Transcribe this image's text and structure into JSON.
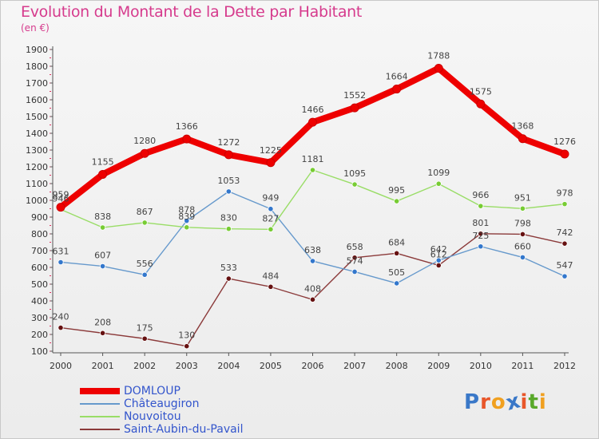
{
  "title": "Evolution du Montant de la Dette par Habitant",
  "subtitle": "(en €)",
  "logo": {
    "text": "Proxiti",
    "letter_colors": [
      "#3a78c8",
      "#e8562a",
      "#f0a020",
      "#3a78c8",
      "#e8562a",
      "#58a82a",
      "#f0a020"
    ]
  },
  "chart_data": {
    "type": "line",
    "x": [
      "2000",
      "2001",
      "2002",
      "2003",
      "2004",
      "2005",
      "2006",
      "2007",
      "2008",
      "2009",
      "2010",
      "2011",
      "2012"
    ],
    "ylim": [
      100,
      1900
    ],
    "yticks": [
      "100",
      "200",
      "300",
      "400",
      "500",
      "600",
      "700",
      "800",
      "900",
      "1000",
      "1100",
      "1200",
      "1300",
      "1400",
      "1500",
      "1600",
      "1700",
      "1800",
      "1900"
    ],
    "grid": false,
    "legend_position": "bottom-left",
    "series": [
      {
        "name": "DOMLOUP",
        "color": "#ee0000",
        "marker_color": "#ee0000",
        "label_color": "#3355cc",
        "values": [
          959,
          1155,
          1280,
          1366,
          1272,
          1225,
          1466,
          1552,
          1664,
          1788,
          1575,
          1368,
          1276
        ],
        "labels": [
          "959",
          "1155",
          "1280",
          "1366",
          "1272",
          "1225",
          "1466",
          "1552",
          "1664",
          "1788",
          "1575",
          "1368",
          "1276"
        ]
      },
      {
        "name": "Châteaugiron",
        "color": "#6699cc",
        "marker_color": "#3377cc",
        "label_color": "#3355cc",
        "values": [
          631,
          607,
          556,
          878,
          1053,
          949,
          638,
          574,
          505,
          642,
          725,
          660,
          547
        ],
        "labels": [
          "631",
          "607",
          "556",
          "878",
          "1053",
          "949",
          "638",
          "574",
          "505",
          "642",
          "725",
          "660",
          "547"
        ]
      },
      {
        "name": "Nouvoitou",
        "color": "#99dd66",
        "marker_color": "#77cc33",
        "label_color": "#3355cc",
        "values": [
          946,
          838,
          867,
          839,
          830,
          827,
          1181,
          1095,
          995,
          1099,
          966,
          951,
          978
        ],
        "labels": [
          "946",
          "838",
          "867",
          "839",
          "830",
          "827",
          "1181",
          "1095",
          "995",
          "1099",
          "966",
          "951",
          "978"
        ]
      },
      {
        "name": "Saint-Aubin-du-Pavail",
        "color": "#8b3a3a",
        "marker_color": "#661111",
        "label_color": "#3355cc",
        "values": [
          240,
          208,
          175,
          130,
          533,
          484,
          408,
          658,
          684,
          612,
          801,
          798,
          742
        ],
        "labels": [
          "240",
          "208",
          "175",
          "130",
          "533",
          "484",
          "408",
          "658",
          "684",
          "612",
          "801",
          "798",
          "742"
        ]
      }
    ]
  },
  "legend": [
    {
      "label": "DOMLOUP",
      "color": "#ee0000",
      "text_color": "#3355cc"
    },
    {
      "label": "Châteaugiron",
      "color": "#6699cc",
      "text_color": "#3355cc"
    },
    {
      "label": "Nouvoitou",
      "color": "#99dd66",
      "text_color": "#3355cc"
    },
    {
      "label": "Saint-Aubin-du-Pavail",
      "color": "#8b3a3a",
      "text_color": "#3355cc"
    }
  ]
}
